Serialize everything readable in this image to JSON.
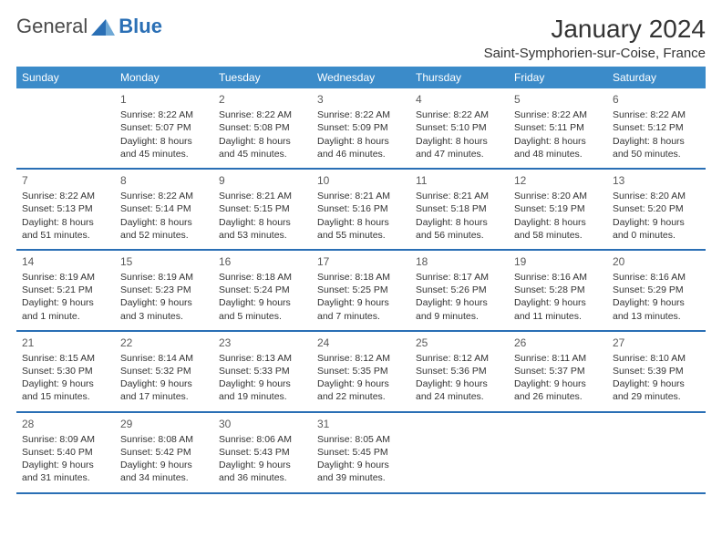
{
  "brand": {
    "part1": "General",
    "part2": "Blue"
  },
  "title": "January 2024",
  "location": "Saint-Symphorien-sur-Coise, France",
  "colors": {
    "header_bg": "#3b8bc9",
    "header_text": "#ffffff",
    "row_divider": "#2a6fb5",
    "cell_divider": "#bfbfbf",
    "logo_accent": "#2a6fb5",
    "text": "#333333",
    "background": "#ffffff"
  },
  "typography": {
    "title_fontsize": 28,
    "location_fontsize": 15,
    "weekday_fontsize": 12,
    "daynum_fontsize": 12,
    "cell_fontsize": 10.5
  },
  "layout": {
    "columns": 7,
    "rows": 5,
    "first_day_column_index": 1
  },
  "weekdays": [
    "Sunday",
    "Monday",
    "Tuesday",
    "Wednesday",
    "Thursday",
    "Friday",
    "Saturday"
  ],
  "days": [
    {
      "n": 1,
      "sunrise": "8:22 AM",
      "sunset": "5:07 PM",
      "daylight": "8 hours and 45 minutes."
    },
    {
      "n": 2,
      "sunrise": "8:22 AM",
      "sunset": "5:08 PM",
      "daylight": "8 hours and 45 minutes."
    },
    {
      "n": 3,
      "sunrise": "8:22 AM",
      "sunset": "5:09 PM",
      "daylight": "8 hours and 46 minutes."
    },
    {
      "n": 4,
      "sunrise": "8:22 AM",
      "sunset": "5:10 PM",
      "daylight": "8 hours and 47 minutes."
    },
    {
      "n": 5,
      "sunrise": "8:22 AM",
      "sunset": "5:11 PM",
      "daylight": "8 hours and 48 minutes."
    },
    {
      "n": 6,
      "sunrise": "8:22 AM",
      "sunset": "5:12 PM",
      "daylight": "8 hours and 50 minutes."
    },
    {
      "n": 7,
      "sunrise": "8:22 AM",
      "sunset": "5:13 PM",
      "daylight": "8 hours and 51 minutes."
    },
    {
      "n": 8,
      "sunrise": "8:22 AM",
      "sunset": "5:14 PM",
      "daylight": "8 hours and 52 minutes."
    },
    {
      "n": 9,
      "sunrise": "8:21 AM",
      "sunset": "5:15 PM",
      "daylight": "8 hours and 53 minutes."
    },
    {
      "n": 10,
      "sunrise": "8:21 AM",
      "sunset": "5:16 PM",
      "daylight": "8 hours and 55 minutes."
    },
    {
      "n": 11,
      "sunrise": "8:21 AM",
      "sunset": "5:18 PM",
      "daylight": "8 hours and 56 minutes."
    },
    {
      "n": 12,
      "sunrise": "8:20 AM",
      "sunset": "5:19 PM",
      "daylight": "8 hours and 58 minutes."
    },
    {
      "n": 13,
      "sunrise": "8:20 AM",
      "sunset": "5:20 PM",
      "daylight": "9 hours and 0 minutes."
    },
    {
      "n": 14,
      "sunrise": "8:19 AM",
      "sunset": "5:21 PM",
      "daylight": "9 hours and 1 minute."
    },
    {
      "n": 15,
      "sunrise": "8:19 AM",
      "sunset": "5:23 PM",
      "daylight": "9 hours and 3 minutes."
    },
    {
      "n": 16,
      "sunrise": "8:18 AM",
      "sunset": "5:24 PM",
      "daylight": "9 hours and 5 minutes."
    },
    {
      "n": 17,
      "sunrise": "8:18 AM",
      "sunset": "5:25 PM",
      "daylight": "9 hours and 7 minutes."
    },
    {
      "n": 18,
      "sunrise": "8:17 AM",
      "sunset": "5:26 PM",
      "daylight": "9 hours and 9 minutes."
    },
    {
      "n": 19,
      "sunrise": "8:16 AM",
      "sunset": "5:28 PM",
      "daylight": "9 hours and 11 minutes."
    },
    {
      "n": 20,
      "sunrise": "8:16 AM",
      "sunset": "5:29 PM",
      "daylight": "9 hours and 13 minutes."
    },
    {
      "n": 21,
      "sunrise": "8:15 AM",
      "sunset": "5:30 PM",
      "daylight": "9 hours and 15 minutes."
    },
    {
      "n": 22,
      "sunrise": "8:14 AM",
      "sunset": "5:32 PM",
      "daylight": "9 hours and 17 minutes."
    },
    {
      "n": 23,
      "sunrise": "8:13 AM",
      "sunset": "5:33 PM",
      "daylight": "9 hours and 19 minutes."
    },
    {
      "n": 24,
      "sunrise": "8:12 AM",
      "sunset": "5:35 PM",
      "daylight": "9 hours and 22 minutes."
    },
    {
      "n": 25,
      "sunrise": "8:12 AM",
      "sunset": "5:36 PM",
      "daylight": "9 hours and 24 minutes."
    },
    {
      "n": 26,
      "sunrise": "8:11 AM",
      "sunset": "5:37 PM",
      "daylight": "9 hours and 26 minutes."
    },
    {
      "n": 27,
      "sunrise": "8:10 AM",
      "sunset": "5:39 PM",
      "daylight": "9 hours and 29 minutes."
    },
    {
      "n": 28,
      "sunrise": "8:09 AM",
      "sunset": "5:40 PM",
      "daylight": "9 hours and 31 minutes."
    },
    {
      "n": 29,
      "sunrise": "8:08 AM",
      "sunset": "5:42 PM",
      "daylight": "9 hours and 34 minutes."
    },
    {
      "n": 30,
      "sunrise": "8:06 AM",
      "sunset": "5:43 PM",
      "daylight": "9 hours and 36 minutes."
    },
    {
      "n": 31,
      "sunrise": "8:05 AM",
      "sunset": "5:45 PM",
      "daylight": "9 hours and 39 minutes."
    }
  ],
  "labels": {
    "sunrise": "Sunrise: ",
    "sunset": "Sunset: ",
    "daylight": "Daylight: "
  }
}
